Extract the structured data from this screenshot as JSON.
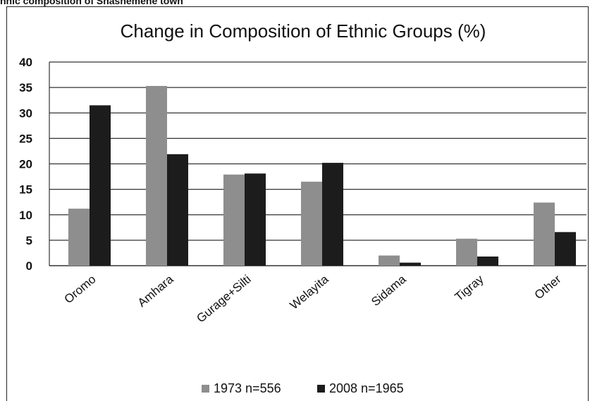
{
  "heading": "hnic composition of Shashemene town",
  "chart_data": {
    "type": "bar",
    "title": "Change in Composition of Ethnic Groups (%)",
    "xlabel": "",
    "ylabel": "",
    "categories": [
      "Oromo",
      "Amhara",
      "Gurage+Silti",
      "Welayita",
      "Sidama",
      "Tigray",
      "Other"
    ],
    "series": [
      {
        "name": "1973 n=556",
        "values": [
          11.2,
          35.3,
          17.9,
          16.5,
          2.0,
          5.3,
          12.4
        ],
        "color": "#8e8e8e"
      },
      {
        "name": "2008 n=1965",
        "values": [
          31.5,
          21.9,
          18.1,
          20.2,
          0.6,
          1.8,
          6.6
        ],
        "color": "#1c1c1c"
      }
    ],
    "ylim": [
      0,
      40
    ],
    "yticks": [
      "0",
      "5",
      "10",
      "15",
      "20",
      "25",
      "30",
      "35",
      "40"
    ],
    "grid": true,
    "legend_position": "bottom"
  }
}
